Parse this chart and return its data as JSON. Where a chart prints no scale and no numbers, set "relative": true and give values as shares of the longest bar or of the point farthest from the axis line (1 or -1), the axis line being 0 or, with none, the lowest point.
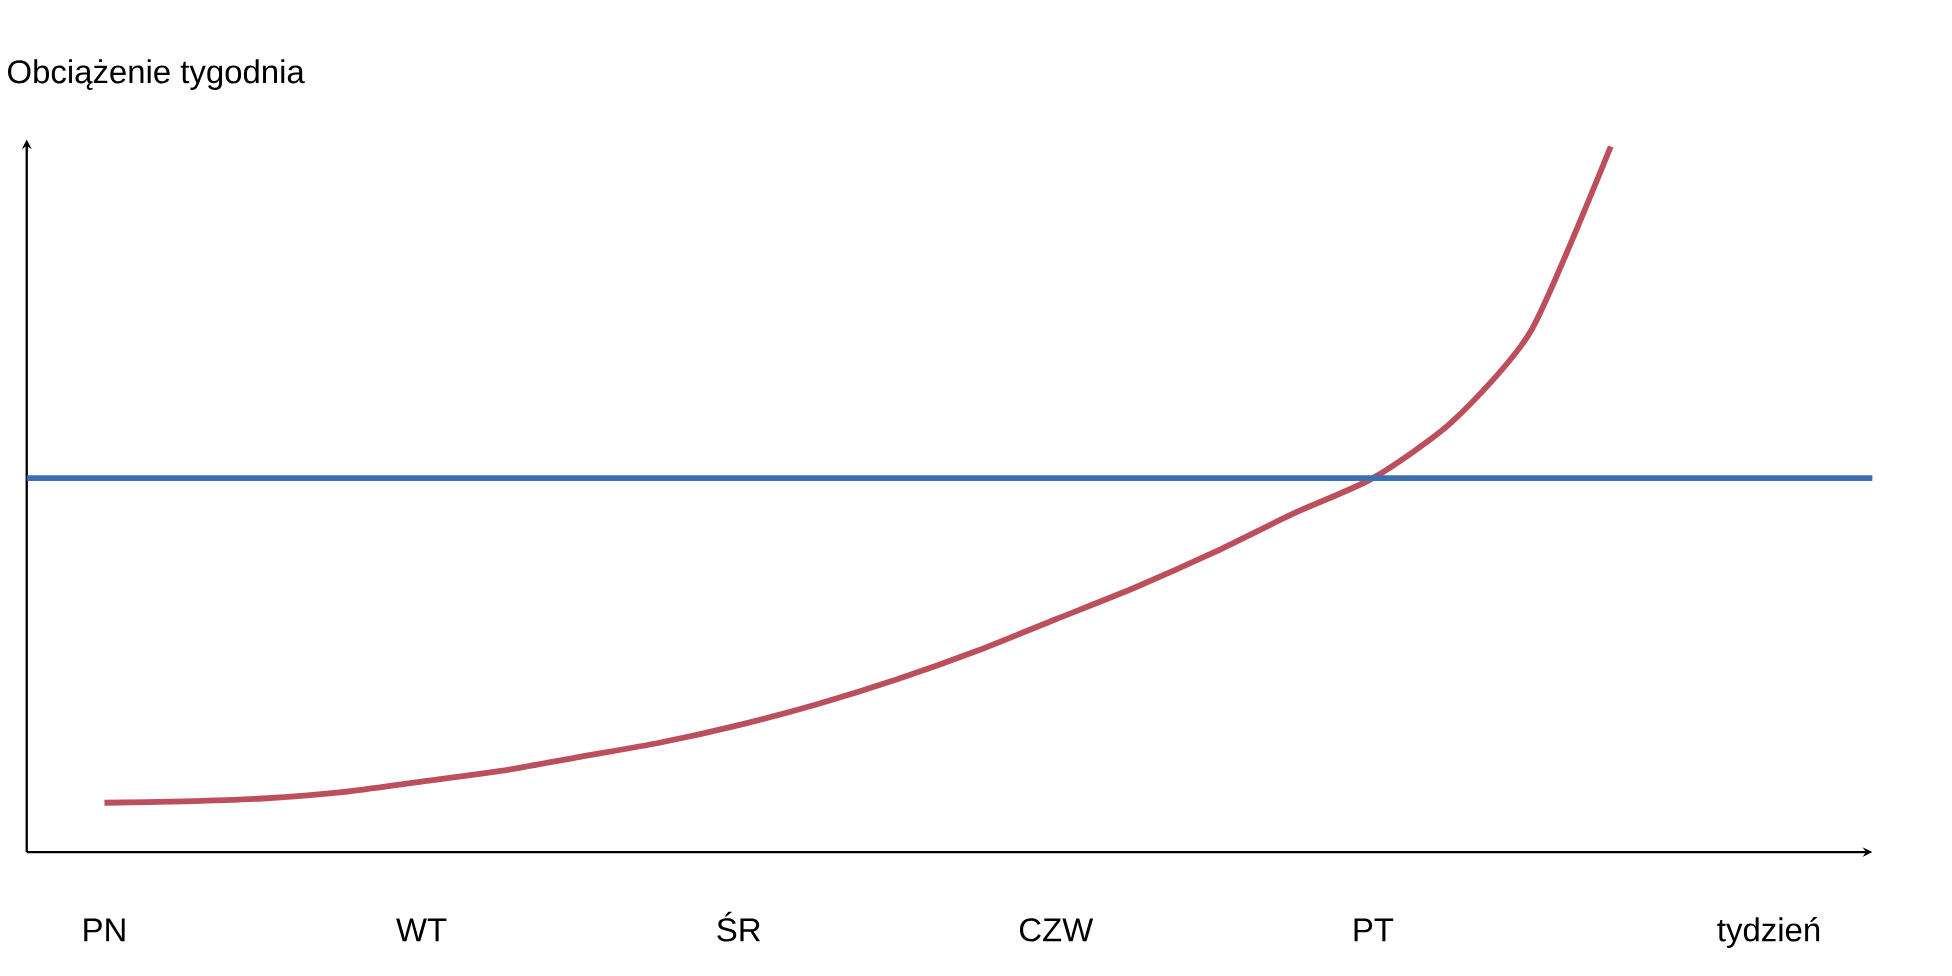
{
  "chart_data": {
    "type": "line",
    "relative": true,
    "xlabel": "tydzień",
    "ylabel": "Obciążenie tygodnia",
    "categories": [
      "PN",
      null,
      null,
      null,
      "WT",
      null,
      null,
      null,
      "ŚR",
      null,
      null,
      null,
      "CZW",
      null,
      null,
      null,
      "PT",
      null,
      null,
      null
    ],
    "series": [
      {
        "color": "#bc4f5c",
        "values": [
          0.07,
          0.072,
          0.076,
          0.085,
          0.1,
          0.115,
          0.135,
          0.155,
          0.18,
          0.21,
          0.245,
          0.285,
          0.33,
          0.375,
          0.425,
          0.48,
          0.53,
          0.61,
          0.74,
          1
        ]
      }
    ],
    "ref_lines": [
      {
        "axis": "y",
        "value": 0.53,
        "color": "#3b6fb0"
      }
    ]
  }
}
